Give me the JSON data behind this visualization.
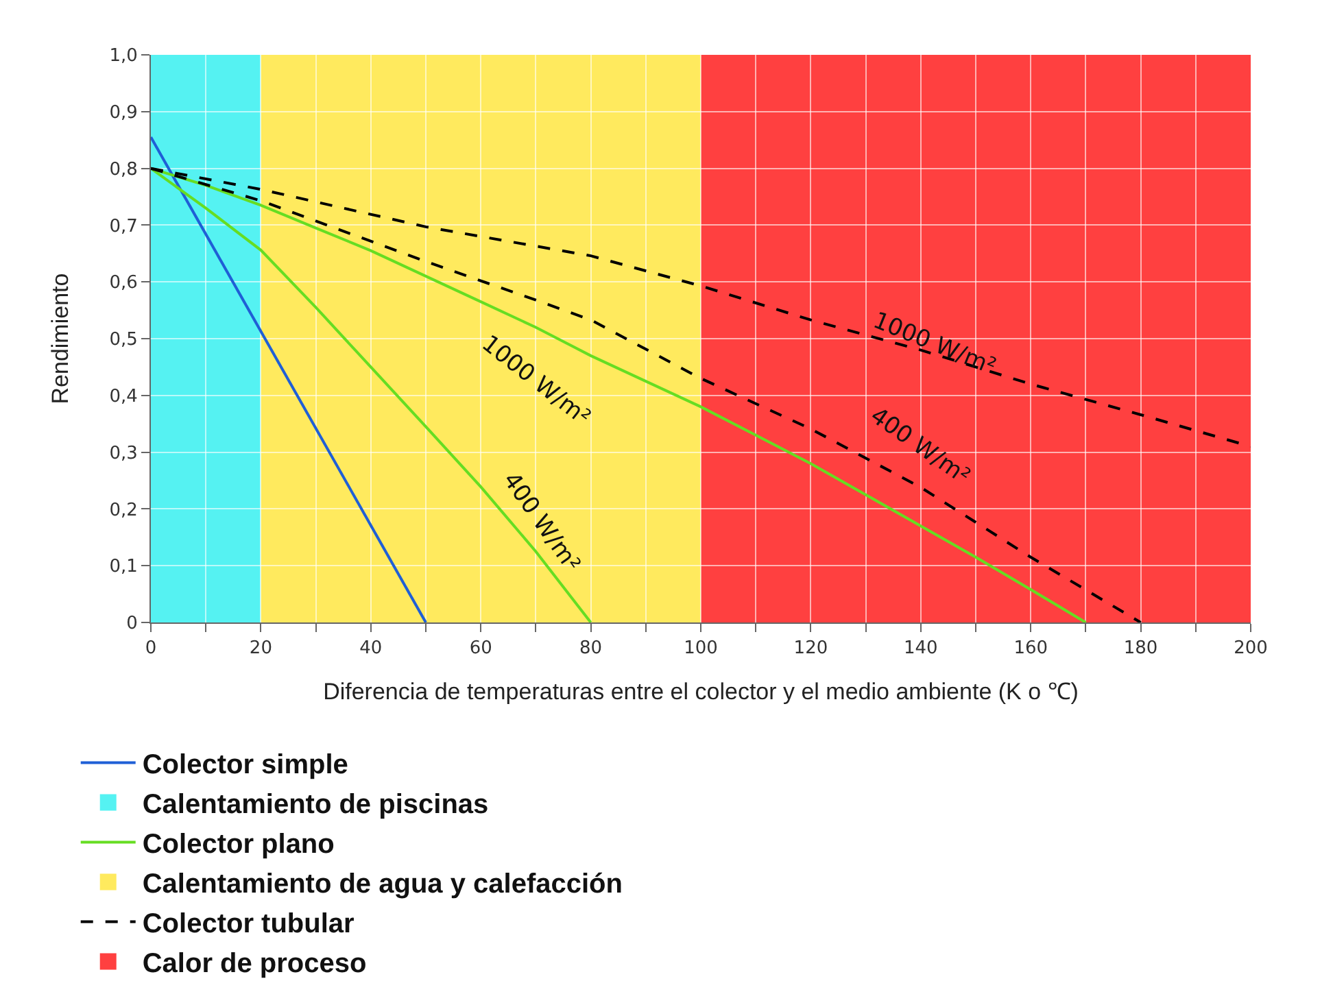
{
  "chart_data": {
    "type": "line",
    "xlabel": "Diferencia de temperaturas entre el colector y el medio ambiente (K o ℃)",
    "ylabel": "Rendimiento",
    "xlim": [
      0,
      200
    ],
    "ylim": [
      0,
      1.0
    ],
    "xticks": [
      0,
      {
        "value": 10,
        "label": null
      },
      20,
      {
        "value": 30,
        "label": null
      },
      40,
      {
        "value": 50,
        "label": null
      },
      60,
      {
        "value": 70,
        "label": null
      },
      80,
      {
        "value": 90,
        "label": null
      },
      100,
      {
        "value": 110,
        "label": null
      },
      120,
      {
        "value": 130,
        "label": null
      },
      140,
      {
        "value": 150,
        "label": null
      },
      160,
      {
        "value": 170,
        "label": null
      },
      180,
      {
        "value": 190,
        "label": null
      },
      200
    ],
    "yticks": [
      0,
      {
        "value": 0.1,
        "label": "0,1"
      },
      {
        "value": 0.2,
        "label": "0,2"
      },
      {
        "value": 0.3,
        "label": "0,3"
      },
      {
        "value": 0.4,
        "label": "0,4"
      },
      {
        "value": 0.5,
        "label": "0,5"
      },
      {
        "value": 0.6,
        "label": "0,6"
      },
      {
        "value": 0.7,
        "label": "0,7"
      },
      {
        "value": 0.8,
        "label": "0,8"
      },
      {
        "value": 0.9,
        "label": "0,9"
      },
      {
        "value": 1.0,
        "label": "1,0"
      }
    ],
    "grid": true,
    "legend": "bottom",
    "marker": "none",
    "series": [
      {
        "name": "Colector simple",
        "color": "#1f5fd6",
        "line_style": "solid",
        "x": [
          0,
          50
        ],
        "values": [
          0.855,
          0
        ]
      },
      {
        "name": "Colector plano",
        "color": "#66dd22",
        "line_style": "solid",
        "x": [
          0,
          10,
          20,
          30,
          40,
          50,
          60,
          70,
          80,
          90,
          100,
          110,
          120,
          130,
          140,
          150,
          160,
          170
        ],
        "values": [
          0.8,
          0.77,
          0.735,
          0.695,
          0.655,
          0.61,
          0.565,
          0.52,
          0.47,
          0.425,
          0.38,
          0.33,
          0.28,
          0.225,
          0.17,
          0.115,
          0.058,
          0
        ]
      },
      {
        "color": "#66dd22",
        "line_style": "solid",
        "x": [
          0,
          10,
          20,
          30,
          40,
          50,
          60,
          70,
          80
        ],
        "values": [
          0.8,
          0.73,
          0.656,
          0.555,
          0.45,
          0.345,
          0.239,
          0.125,
          0
        ]
      },
      {
        "name": "Colector tubular",
        "color": "#000000",
        "line_style": "dashed",
        "x": [
          0,
          20,
          50,
          80,
          100,
          120,
          140,
          160,
          180,
          200
        ],
        "values": [
          0.8,
          0.763,
          0.697,
          0.646,
          0.593,
          0.533,
          0.48,
          0.42,
          0.366,
          0.31
        ]
      },
      {
        "color": "#000000",
        "line_style": "dashed",
        "x": [
          0,
          20,
          50,
          70,
          80,
          100,
          120,
          140,
          160,
          180
        ],
        "values": [
          0.8,
          0.743,
          0.636,
          0.568,
          0.533,
          0.43,
          0.341,
          0.238,
          0.115,
          0
        ]
      }
    ],
    "bands": [
      {
        "axis": "x",
        "from": 0,
        "to": 20,
        "label": "Calentamiento de piscinas",
        "color": "#55f2f2"
      },
      {
        "axis": "x",
        "from": 20,
        "to": 100,
        "label": "Calentamiento de agua y calefacción",
        "color": "#ffea5e"
      },
      {
        "axis": "x",
        "from": 100,
        "to": 200,
        "label": "Calor de proceso",
        "color": "#ff4040"
      }
    ],
    "annotations": [
      "1000 W/m²",
      "400 W/m²",
      "1000 W/m²",
      "400 W/m²"
    ]
  }
}
